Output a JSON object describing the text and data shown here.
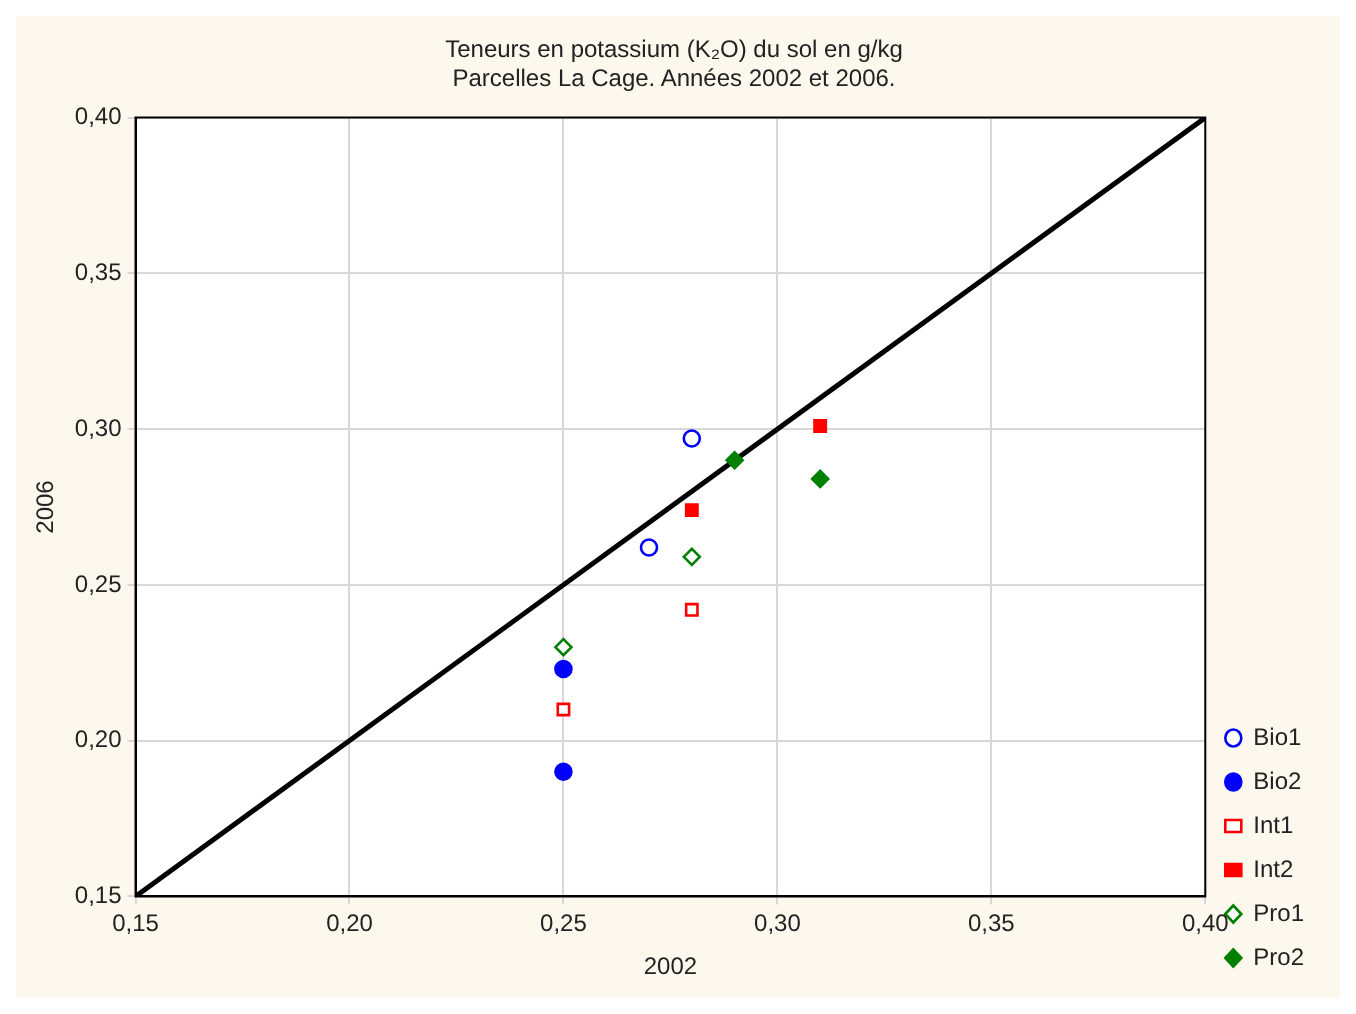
{
  "chart_data": {
    "type": "scatter",
    "title": "Teneurs en potassium (K₂O) du sol en g/kg",
    "subtitle": "Parcelles La Cage. Années 2002 et 2006.",
    "xlabel": "2002",
    "ylabel": "2006",
    "xlim": [
      0.15,
      0.4
    ],
    "ylim": [
      0.15,
      0.4
    ],
    "xticks": [
      {
        "value": 0.15,
        "label": "0,15"
      },
      {
        "value": 0.2,
        "label": "0,20"
      },
      {
        "value": 0.25,
        "label": "0,25"
      },
      {
        "value": 0.3,
        "label": "0,30"
      },
      {
        "value": 0.35,
        "label": "0,35"
      },
      {
        "value": 0.4,
        "label": "0,40"
      }
    ],
    "yticks": [
      {
        "value": 0.15,
        "label": "0,15"
      },
      {
        "value": 0.2,
        "label": "0,20"
      },
      {
        "value": 0.25,
        "label": "0,25"
      },
      {
        "value": 0.3,
        "label": "0,30"
      },
      {
        "value": 0.35,
        "label": "0,35"
      },
      {
        "value": 0.4,
        "label": "0,40"
      }
    ],
    "grid": true,
    "legend": "bottom right",
    "series": [
      {
        "name": "Bio1",
        "color": "#0000ff",
        "marker": "circle",
        "x": [
          0.28,
          0.27
        ],
        "values": [
          0.297,
          0.262
        ]
      },
      {
        "name": "Bio2",
        "color": "#0000ff",
        "marker": "circle",
        "x": [
          0.25,
          0.25
        ],
        "values": [
          0.223,
          0.19
        ]
      },
      {
        "name": "Int1",
        "color": "#ff0000",
        "marker": "square",
        "x": [
          0.25,
          0.28
        ],
        "values": [
          0.21,
          0.242
        ]
      },
      {
        "name": "Int2",
        "color": "#ff0000",
        "marker": "square",
        "x": [
          0.28,
          0.31
        ],
        "values": [
          0.274,
          0.301
        ]
      },
      {
        "name": "Pro1",
        "color": "#008000",
        "marker": "diamond",
        "x": [
          0.25,
          0.28
        ],
        "values": [
          0.23,
          0.259
        ]
      },
      {
        "name": "Pro2",
        "color": "#008000",
        "marker": "diamond",
        "x": [
          0.29,
          0.31
        ],
        "values": [
          0.29,
          0.284
        ]
      },
      {
        "type": "line",
        "color": "#000000",
        "x": [
          0.15,
          0.4
        ],
        "values": [
          0.15,
          0.4
        ]
      }
    ]
  }
}
